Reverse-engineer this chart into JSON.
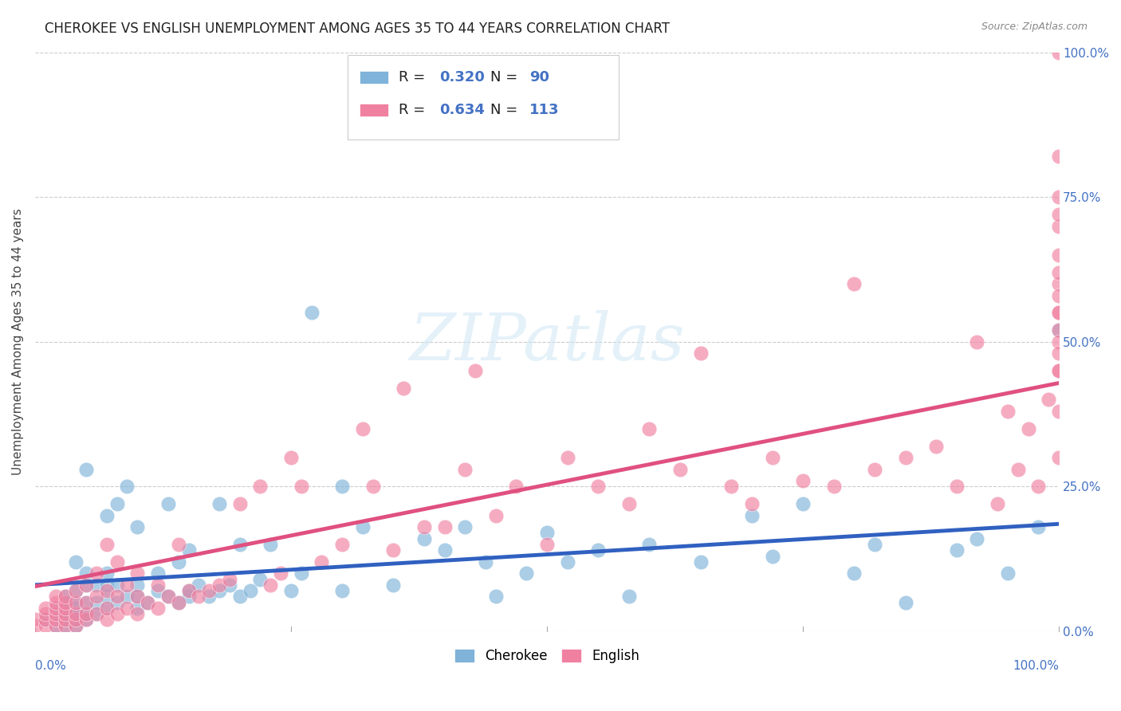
{
  "title": "CHEROKEE VS ENGLISH UNEMPLOYMENT AMONG AGES 35 TO 44 YEARS CORRELATION CHART",
  "source": "Source: ZipAtlas.com",
  "ylabel": "Unemployment Among Ages 35 to 44 years",
  "xlim": [
    0,
    1
  ],
  "ylim": [
    0,
    1
  ],
  "ytick_labels": [
    "0.0%",
    "25.0%",
    "50.0%",
    "75.0%",
    "100.0%"
  ],
  "ytick_values": [
    0,
    0.25,
    0.5,
    0.75,
    1.0
  ],
  "cherokee_color": "#7fb3d9",
  "english_color": "#f080a0",
  "cherokee_line_color": "#3060c0",
  "english_line_color": "#e05080",
  "cherokee_R": 0.32,
  "english_R": 0.634,
  "cherokee_N": 90,
  "english_N": 113,
  "cherokee_x": [
    0.01,
    0.02,
    0.02,
    0.02,
    0.03,
    0.03,
    0.03,
    0.03,
    0.03,
    0.03,
    0.04,
    0.04,
    0.04,
    0.04,
    0.04,
    0.04,
    0.04,
    0.05,
    0.05,
    0.05,
    0.05,
    0.05,
    0.05,
    0.06,
    0.06,
    0.06,
    0.07,
    0.07,
    0.07,
    0.07,
    0.07,
    0.08,
    0.08,
    0.08,
    0.09,
    0.09,
    0.1,
    0.1,
    0.1,
    0.1,
    0.11,
    0.12,
    0.12,
    0.13,
    0.13,
    0.14,
    0.14,
    0.15,
    0.15,
    0.15,
    0.16,
    0.17,
    0.18,
    0.18,
    0.19,
    0.2,
    0.2,
    0.21,
    0.22,
    0.23,
    0.25,
    0.26,
    0.27,
    0.3,
    0.3,
    0.32,
    0.35,
    0.38,
    0.4,
    0.42,
    0.44,
    0.45,
    0.48,
    0.5,
    0.52,
    0.55,
    0.58,
    0.6,
    0.65,
    0.7,
    0.72,
    0.75,
    0.8,
    0.82,
    0.85,
    0.9,
    0.92,
    0.95,
    0.98,
    1.0
  ],
  "cherokee_y": [
    0.02,
    0.01,
    0.03,
    0.04,
    0.01,
    0.02,
    0.03,
    0.04,
    0.05,
    0.06,
    0.01,
    0.02,
    0.03,
    0.04,
    0.05,
    0.07,
    0.12,
    0.02,
    0.03,
    0.05,
    0.08,
    0.1,
    0.28,
    0.03,
    0.05,
    0.08,
    0.04,
    0.06,
    0.08,
    0.1,
    0.2,
    0.05,
    0.08,
    0.22,
    0.06,
    0.25,
    0.04,
    0.06,
    0.08,
    0.18,
    0.05,
    0.07,
    0.1,
    0.06,
    0.22,
    0.05,
    0.12,
    0.06,
    0.07,
    0.14,
    0.08,
    0.06,
    0.07,
    0.22,
    0.08,
    0.06,
    0.15,
    0.07,
    0.09,
    0.15,
    0.07,
    0.1,
    0.55,
    0.07,
    0.25,
    0.18,
    0.08,
    0.16,
    0.14,
    0.18,
    0.12,
    0.06,
    0.1,
    0.17,
    0.12,
    0.14,
    0.06,
    0.15,
    0.12,
    0.2,
    0.13,
    0.22,
    0.1,
    0.15,
    0.05,
    0.14,
    0.16,
    0.1,
    0.18,
    0.52
  ],
  "english_x": [
    0.0,
    0.0,
    0.01,
    0.01,
    0.01,
    0.01,
    0.02,
    0.02,
    0.02,
    0.02,
    0.02,
    0.02,
    0.03,
    0.03,
    0.03,
    0.03,
    0.03,
    0.03,
    0.04,
    0.04,
    0.04,
    0.04,
    0.04,
    0.05,
    0.05,
    0.05,
    0.05,
    0.06,
    0.06,
    0.06,
    0.07,
    0.07,
    0.07,
    0.07,
    0.08,
    0.08,
    0.08,
    0.09,
    0.09,
    0.1,
    0.1,
    0.1,
    0.11,
    0.12,
    0.12,
    0.13,
    0.14,
    0.14,
    0.15,
    0.16,
    0.17,
    0.18,
    0.19,
    0.2,
    0.22,
    0.23,
    0.24,
    0.25,
    0.26,
    0.28,
    0.3,
    0.32,
    0.33,
    0.35,
    0.36,
    0.38,
    0.4,
    0.42,
    0.43,
    0.45,
    0.47,
    0.5,
    0.52,
    0.55,
    0.58,
    0.6,
    0.63,
    0.65,
    0.68,
    0.7,
    0.72,
    0.75,
    0.78,
    0.8,
    0.82,
    0.85,
    0.88,
    0.9,
    0.92,
    0.94,
    0.95,
    0.96,
    0.97,
    0.98,
    0.99,
    1.0,
    1.0,
    1.0,
    1.0,
    1.0,
    1.0,
    1.0,
    1.0,
    1.0,
    1.0,
    1.0,
    1.0,
    1.0,
    1.0,
    1.0,
    1.0,
    1.0,
    1.0
  ],
  "english_y": [
    0.01,
    0.02,
    0.01,
    0.02,
    0.03,
    0.04,
    0.01,
    0.02,
    0.03,
    0.04,
    0.05,
    0.06,
    0.01,
    0.02,
    0.03,
    0.04,
    0.05,
    0.06,
    0.01,
    0.02,
    0.03,
    0.05,
    0.07,
    0.02,
    0.03,
    0.05,
    0.08,
    0.03,
    0.06,
    0.1,
    0.02,
    0.04,
    0.07,
    0.15,
    0.03,
    0.06,
    0.12,
    0.04,
    0.08,
    0.03,
    0.06,
    0.1,
    0.05,
    0.04,
    0.08,
    0.06,
    0.05,
    0.15,
    0.07,
    0.06,
    0.07,
    0.08,
    0.09,
    0.22,
    0.25,
    0.08,
    0.1,
    0.3,
    0.25,
    0.12,
    0.15,
    0.35,
    0.25,
    0.14,
    0.42,
    0.18,
    0.18,
    0.28,
    0.45,
    0.2,
    0.25,
    0.15,
    0.3,
    0.25,
    0.22,
    0.35,
    0.28,
    0.48,
    0.25,
    0.22,
    0.3,
    0.26,
    0.25,
    0.6,
    0.28,
    0.3,
    0.32,
    0.25,
    0.5,
    0.22,
    0.38,
    0.28,
    0.35,
    0.25,
    0.4,
    0.45,
    0.52,
    0.55,
    0.6,
    0.7,
    0.75,
    0.5,
    0.82,
    0.48,
    0.55,
    0.62,
    0.38,
    0.45,
    0.3,
    0.58,
    0.65,
    0.72,
    1.0
  ]
}
